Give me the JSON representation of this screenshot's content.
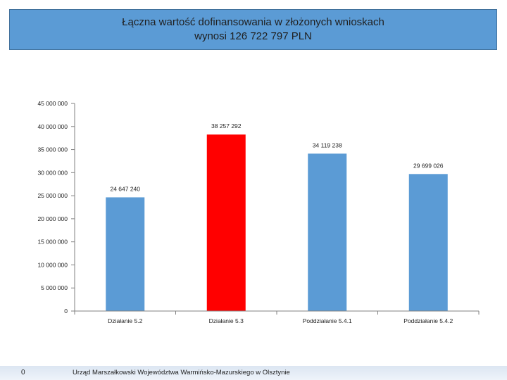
{
  "slide": {
    "title_line1": "Łączna wartość dofinansowania w złożonych wnioskach",
    "title_line2": "wynosi 126 722 797 PLN",
    "page_number": "0",
    "footer_text": "Urząd Marszałkowski Województwa Warmińsko-Mazurskiego w Olsztynie"
  },
  "chart_data": {
    "type": "bar",
    "title": "Łączna wartość dofinansowania w złożonych wnioskach wynosi 126 722 797 PLN",
    "categories": [
      "Działanie 5.2",
      "Działanie 5.3",
      "Poddziałanie 5.4.1",
      "Poddziałanie 5.4.2"
    ],
    "values": [
      24647240,
      38257292,
      34119238,
      29699026
    ],
    "value_labels": [
      "24 647 240",
      "38 257 292",
      "34 119 238",
      "29 699 026"
    ],
    "bar_colors": [
      "#5b9bd5",
      "#ff0000",
      "#5b9bd5",
      "#5b9bd5"
    ],
    "ylim": [
      0,
      45000000
    ],
    "yticks": [
      0,
      5000000,
      10000000,
      15000000,
      20000000,
      25000000,
      30000000,
      35000000,
      40000000,
      45000000
    ],
    "ytick_labels": [
      "0",
      "5 000 000",
      "10 000 000",
      "15 000 000",
      "20 000 000",
      "25 000 000",
      "30 000 000",
      "35 000 000",
      "40 000 000",
      "45 000 000"
    ],
    "grid": false,
    "xlabel": "",
    "ylabel": ""
  }
}
